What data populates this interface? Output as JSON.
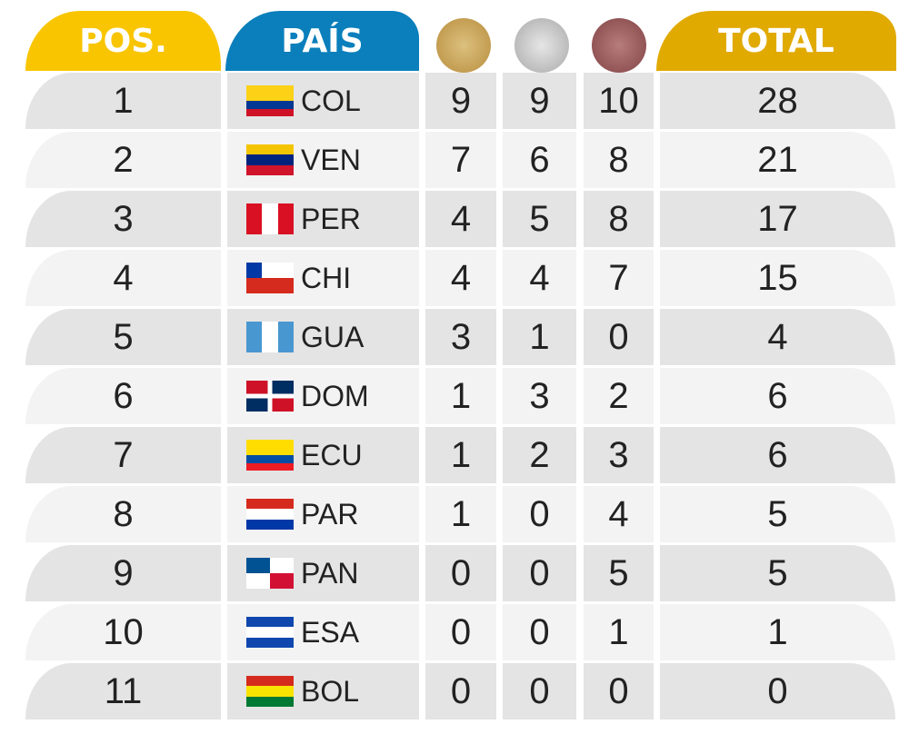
{
  "headers": {
    "pos": "POS.",
    "pais": "PAÍS",
    "total": "TOTAL"
  },
  "medals": [
    {
      "name": "gold",
      "color": "#c9a55a"
    },
    {
      "name": "silver",
      "color": "#c4c4c4"
    },
    {
      "name": "bronze",
      "color": "#9a5a5c"
    }
  ],
  "rows": [
    {
      "pos": "1",
      "country": "COL",
      "gold": "9",
      "silver": "9",
      "bronze": "10",
      "total": "28",
      "flag": [
        [
          "#fcd116",
          2
        ],
        [
          "#003893",
          1
        ],
        [
          "#ce1126",
          1
        ]
      ]
    },
    {
      "pos": "2",
      "country": "VEN",
      "gold": "7",
      "silver": "6",
      "bronze": "8",
      "total": "21",
      "flag": [
        [
          "#f4c400",
          1
        ],
        [
          "#00247d",
          1
        ],
        [
          "#cf142b",
          1
        ]
      ]
    },
    {
      "pos": "3",
      "country": "PER",
      "gold": "4",
      "silver": "5",
      "bronze": "8",
      "total": "17",
      "flag": "per"
    },
    {
      "pos": "4",
      "country": "CHI",
      "gold": "4",
      "silver": "4",
      "bronze": "7",
      "total": "15",
      "flag": "chi"
    },
    {
      "pos": "5",
      "country": "GUA",
      "gold": "3",
      "silver": "1",
      "bronze": "0",
      "total": "4",
      "flag": "gua"
    },
    {
      "pos": "6",
      "country": "DOM",
      "gold": "1",
      "silver": "3",
      "bronze": "2",
      "total": "6",
      "flag": "dom"
    },
    {
      "pos": "7",
      "country": "ECU",
      "gold": "1",
      "silver": "2",
      "bronze": "3",
      "total": "6",
      "flag": [
        [
          "#ffdd00",
          2
        ],
        [
          "#034ea2",
          1
        ],
        [
          "#ed1c24",
          1
        ]
      ]
    },
    {
      "pos": "8",
      "country": "PAR",
      "gold": "1",
      "silver": "0",
      "bronze": "4",
      "total": "5",
      "flag": [
        [
          "#d52b1e",
          1
        ],
        [
          "#ffffff",
          1
        ],
        [
          "#0038a8",
          1
        ]
      ]
    },
    {
      "pos": "9",
      "country": "PAN",
      "gold": "0",
      "silver": "0",
      "bronze": "5",
      "total": "5",
      "flag": "pan"
    },
    {
      "pos": "10",
      "country": "ESA",
      "gold": "0",
      "silver": "0",
      "bronze": "1",
      "total": "1",
      "flag": [
        [
          "#0f47af",
          1
        ],
        [
          "#ffffff",
          1
        ],
        [
          "#0f47af",
          1
        ]
      ]
    },
    {
      "pos": "11",
      "country": "BOL",
      "gold": "0",
      "silver": "0",
      "bronze": "0",
      "total": "0",
      "flag": [
        [
          "#d52b1e",
          1
        ],
        [
          "#f9e300",
          1
        ],
        [
          "#007934",
          1
        ]
      ]
    }
  ]
}
